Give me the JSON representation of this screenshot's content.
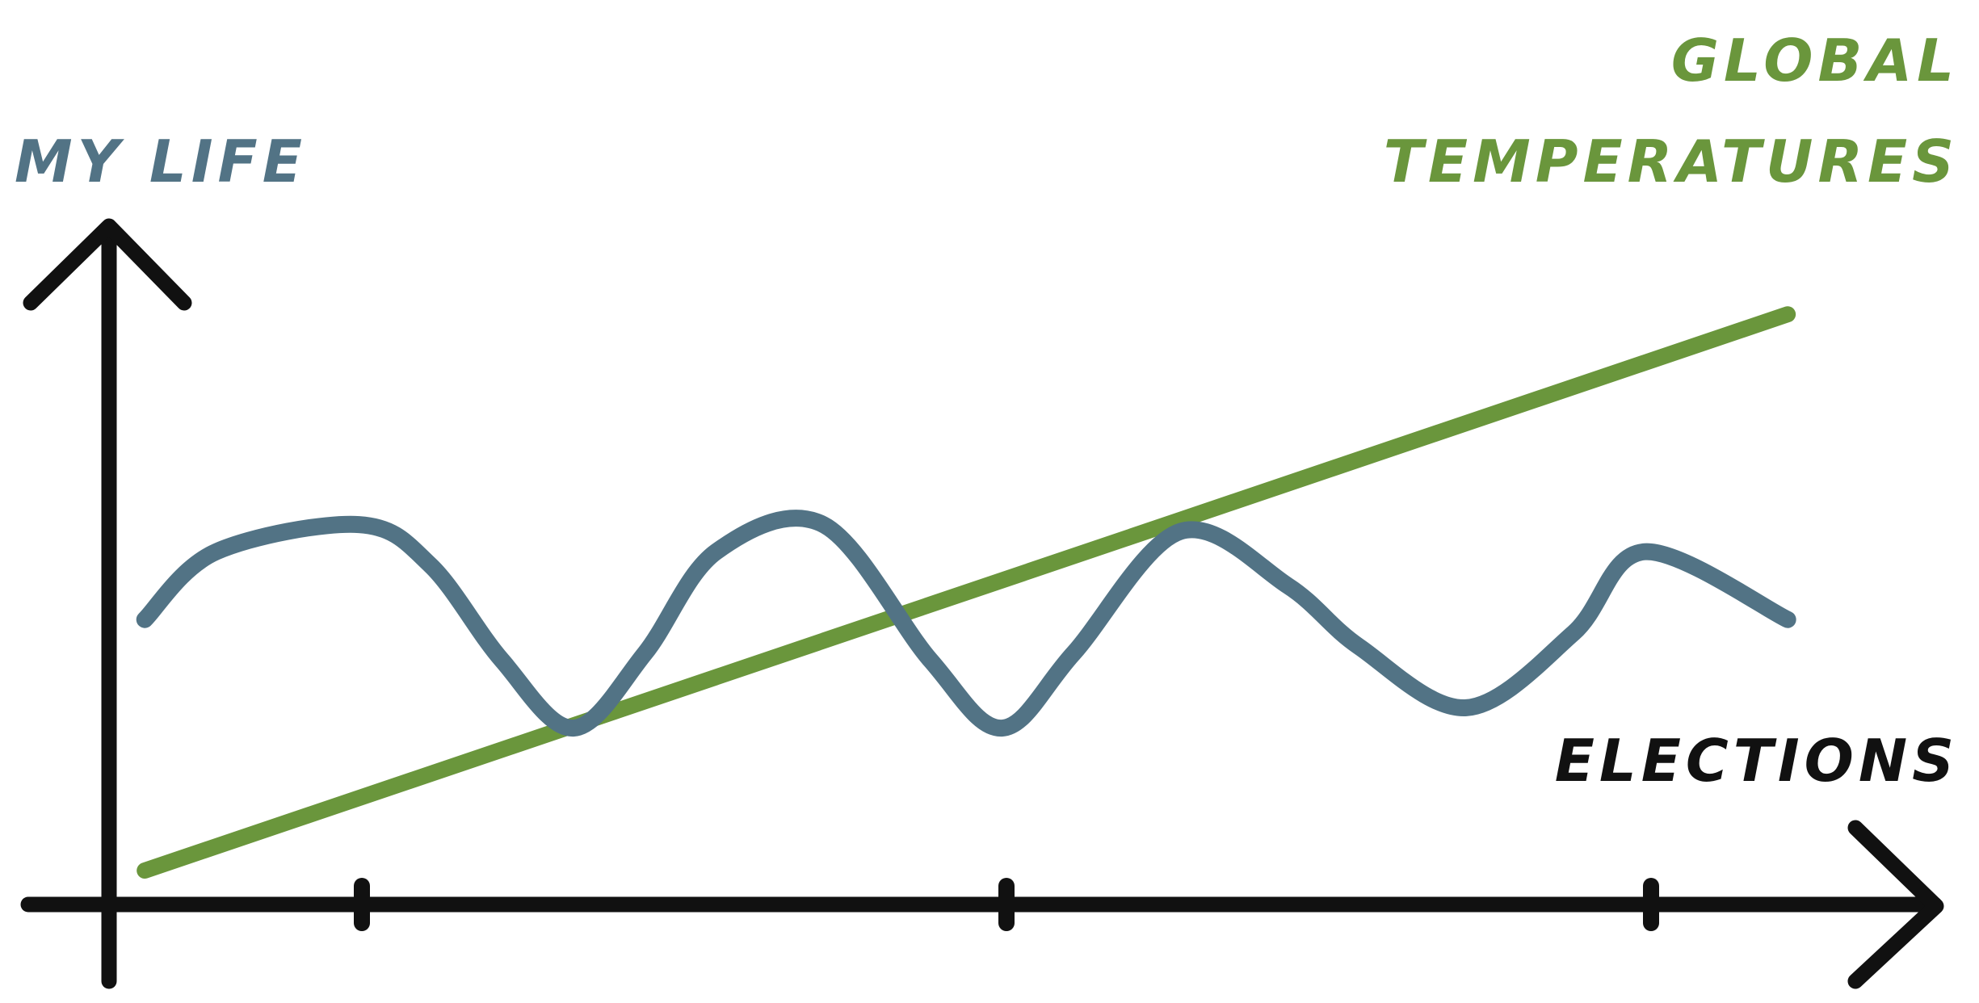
{
  "chart_data": {
    "type": "line",
    "title": "",
    "xlabel": "ELECTIONS",
    "ylabel": "",
    "x_ticks": [
      "",
      "",
      ""
    ],
    "grid": false,
    "series": [
      {
        "name": "MY LIFE",
        "color": "#527385",
        "style": "wavy",
        "x": [
          0.05,
          0.15,
          0.35,
          0.45,
          0.55,
          0.65,
          0.75,
          0.85,
          1.0,
          1.15,
          1.25,
          1.35,
          1.5,
          1.65,
          1.75,
          1.9,
          2.05,
          2.15,
          2.35
        ],
        "y": [
          0.42,
          0.52,
          0.56,
          0.5,
          0.36,
          0.26,
          0.37,
          0.52,
          0.56,
          0.36,
          0.26,
          0.37,
          0.55,
          0.47,
          0.38,
          0.29,
          0.4,
          0.52,
          0.42
        ]
      },
      {
        "name": "GLOBAL TEMPERATURES",
        "color": "#6a963c",
        "style": "straight",
        "x": [
          0.05,
          2.35
        ],
        "y": [
          0.05,
          0.87
        ]
      }
    ],
    "label_colors": {
      "my_life": "#527385",
      "global_temperatures": "#6a963c",
      "elections": "#111111"
    }
  },
  "labels": {
    "y_series": "MY LIFE",
    "top_series_line1": "GLOBAL",
    "top_series_line2": "TEMPERATURES",
    "x_axis": "ELECTIONS"
  },
  "colors": {
    "axis": "#111111",
    "my_life": "#527385",
    "global_temperatures": "#6a963c"
  }
}
